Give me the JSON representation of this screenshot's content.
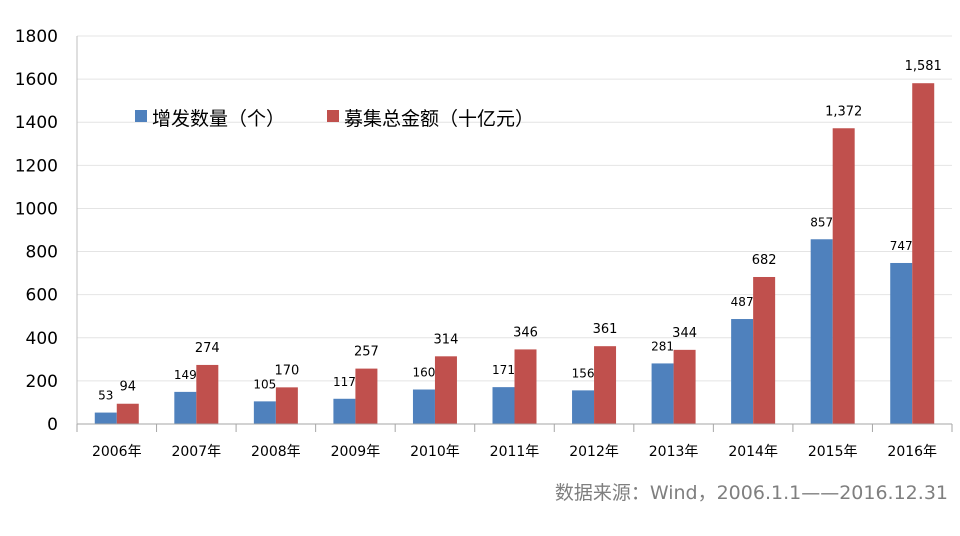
{
  "chart_data": {
    "type": "bar",
    "categories": [
      "2006年",
      "2007年",
      "2008年",
      "2009年",
      "2010年",
      "2011年",
      "2012年",
      "2013年",
      "2014年",
      "2015年",
      "2016年"
    ],
    "series": [
      {
        "name": "增发数量（个）",
        "values": [
          53,
          149,
          105,
          117,
          160,
          171,
          156,
          281,
          487,
          857,
          747
        ],
        "labels": [
          "53",
          "149",
          "105",
          "117",
          "160",
          "171",
          "156",
          "281",
          "487",
          "857",
          "747"
        ],
        "color": "#4f81bd"
      },
      {
        "name": "募集总金额（十亿元）",
        "values": [
          94,
          274,
          170,
          257,
          314,
          346,
          361,
          344,
          682,
          1372,
          1581
        ],
        "labels": [
          "94",
          "274",
          "170",
          "257",
          "314",
          "346",
          "361",
          "344",
          "682",
          "1,372",
          "1,581"
        ],
        "color": "#c0504d"
      }
    ],
    "yticks": [
      "0",
      "200",
      "400",
      "600",
      "800",
      "1000",
      "1200",
      "1400",
      "1600",
      "1800"
    ],
    "ylim": [
      0,
      1800
    ],
    "grid": true,
    "legend_position": "top-left"
  },
  "source_text": "数据来源：Wind，2006.1.1——2016.12.31"
}
